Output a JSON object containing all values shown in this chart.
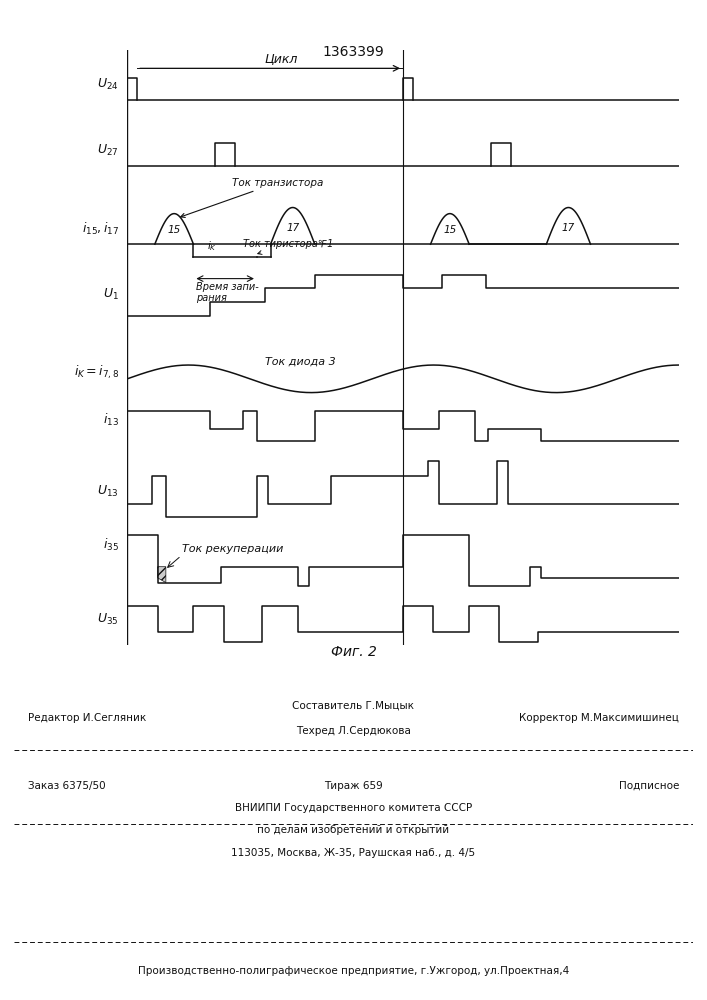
{
  "title": "1363399",
  "fig_caption": "Фиг. 2",
  "background_color": "#ffffff",
  "line_color": "#111111",
  "footer": {
    "editor": "Редактор И.Сегляник",
    "compiler": "Составитель Г.Мыцык",
    "techred": "Техред Л.Сердюкова",
    "corrector": "Корректор М.Максимишинец",
    "order": "Заказ 6375/50",
    "tirazh": "Тираж 659",
    "podpisnoe": "Подписное",
    "vniip1": "ВНИИПИ Государственного комитета СССР",
    "vniip2": "по делам изобретений и открытий",
    "vniip3": "113035, Москва, Ж-35, Раушская наб., д. 4/5",
    "production": "Производственно-полиграфическое предприятие, г.Ужгород, ул.Проектная,4"
  },
  "annot": {
    "tsikl": "Цикл",
    "tok_tranz": "Ток транзистора",
    "ik": "i_K",
    "tok_tir": "Ток тиристора℉1",
    "vremya": "Время запи-\nрания",
    "tok_dioda": "Ток диода 3",
    "tok_rekup": "Ток рекуперации"
  }
}
